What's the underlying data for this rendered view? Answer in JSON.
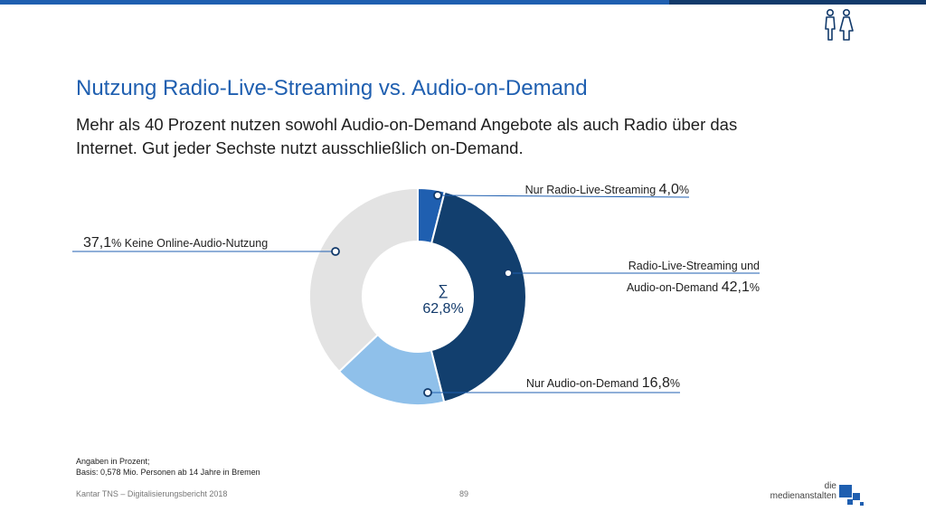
{
  "header": {
    "title": "Nutzung Radio-Live-Streaming vs. Audio-on-Demand",
    "subtitle": "Mehr als 40 Prozent nutzen sowohl Audio-on-Demand Angebote als auch Radio über das Internet. Gut jeder Sechste nutzt ausschließlich on-Demand.",
    "icon": "people-icon"
  },
  "chart_data": {
    "type": "pie",
    "donut": true,
    "center_label": {
      "symbol": "∑",
      "value": "62,8%"
    },
    "slices": [
      {
        "label": "Nur Radio-Live-Streaming",
        "label_line2": "",
        "value": 4.0,
        "value_text": "4,0",
        "unit": "%",
        "color": "#1f5fb0"
      },
      {
        "label": "Radio-Live-Streaming und",
        "label_line2": "Audio-on-Demand",
        "value": 42.1,
        "value_text": "42,1",
        "unit": "%",
        "color": "#123f6e"
      },
      {
        "label": "Nur Audio-on-Demand",
        "label_line2": "",
        "value": 16.8,
        "value_text": "16,8",
        "unit": "%",
        "color": "#8fc0ea"
      },
      {
        "label": "Keine Online-Audio-Nutzung",
        "label_line2": "",
        "value": 37.1,
        "value_text": "37,1",
        "unit": "%",
        "color": "#e3e3e3"
      }
    ]
  },
  "notes": {
    "line1": "Angaben in Prozent;",
    "line2": "Basis: 0,578 Mio. Personen ab 14 Jahre in Bremen"
  },
  "footer": {
    "source": "Kantar TNS – Digitalisierungsbericht 2018",
    "page": "89",
    "brand_line1": "die",
    "brand_line2": "medienanstalten"
  },
  "colors": {
    "accent": "#1f5fb0",
    "dark": "#123a6b"
  }
}
